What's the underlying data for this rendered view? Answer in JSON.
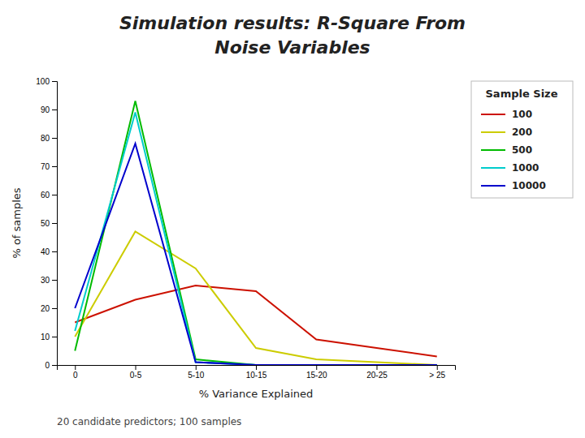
{
  "chart_data": {
    "type": "line",
    "title": "Simulation results: R-Square From",
    "subtitle": "Noise Variables",
    "x_label": "% Variance Explained",
    "y_label": "% of samples",
    "annotations": [
      "20 candidate predictors; 100 samples"
    ],
    "legend_title": "Sample Size",
    "categories": [
      "0",
      "0-5",
      "5-10",
      "10-15",
      "15-20",
      "20-25",
      "> 25"
    ],
    "series": [
      {
        "name": "100",
        "color": "#CC1100",
        "values": [
          15,
          23,
          28,
          26,
          9,
          6,
          3
        ]
      },
      {
        "name": "200",
        "color": "#CCCC00",
        "values": [
          10,
          47,
          34,
          6,
          2,
          1,
          0
        ]
      },
      {
        "name": "500",
        "color": "#00BB00",
        "values": [
          5,
          93,
          2,
          0,
          0,
          0,
          0
        ]
      },
      {
        "name": "1000",
        "color": "#00CCCC",
        "values": [
          12,
          89,
          1,
          0,
          0,
          0,
          0
        ]
      },
      {
        "name": "10000",
        "color": "#0000CC",
        "values": [
          20,
          78,
          1,
          0,
          0,
          0,
          0
        ]
      }
    ],
    "ylim": [
      0,
      100
    ],
    "yticks": [
      0,
      10,
      20,
      30,
      40,
      50,
      60,
      70,
      80,
      90,
      100
    ],
    "grid": false,
    "legend": "right"
  }
}
